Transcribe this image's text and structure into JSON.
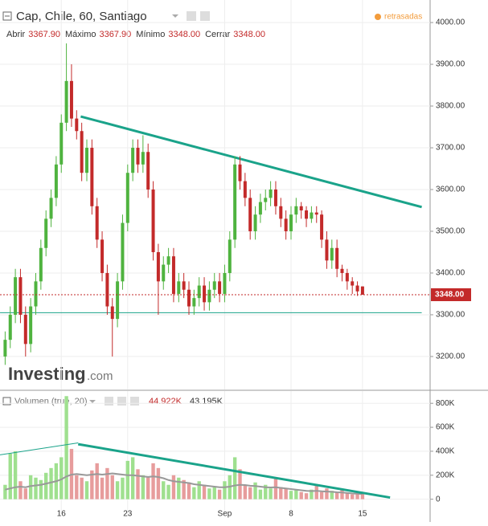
{
  "chart_data": {
    "type": "candlestick",
    "title": "Cap, Chile, 60, Santiago",
    "status": "retrasadas",
    "ohlc_labels": [
      {
        "name": "Abrir",
        "value": "3367.90"
      },
      {
        "name": "Máximo",
        "value": "3367.90"
      },
      {
        "name": "Mínimo",
        "value": "3348.00"
      },
      {
        "name": "Cerrar",
        "value": "3348.00"
      }
    ],
    "logo": "Investing",
    "logo_suffix": ".com",
    "categories": [
      null,
      null,
      null,
      null,
      null,
      null,
      null,
      null,
      null,
      null,
      null,
      "16",
      null,
      null,
      null,
      null,
      null,
      null,
      null,
      null,
      null,
      null,
      null,
      null,
      "23",
      null,
      null,
      null,
      null,
      null,
      null,
      null,
      null,
      null,
      null,
      null,
      null,
      null,
      null,
      null,
      null,
      null,
      null,
      "Sep",
      null,
      null,
      null,
      null,
      null,
      null,
      null,
      null,
      null,
      null,
      null,
      null,
      "8",
      null,
      null,
      null,
      null,
      null,
      null,
      null,
      null,
      null,
      null,
      null,
      null,
      null,
      "15"
    ],
    "open": [
      3200,
      3240,
      3300,
      3390,
      3300,
      3230,
      3320,
      3380,
      3460,
      3530,
      3580,
      3660,
      3760,
      3860,
      3770,
      3740,
      3640,
      3700,
      3560,
      3480,
      3400,
      3320,
      3290,
      3380,
      3520,
      3640,
      3700,
      3660,
      3690,
      3600,
      3450,
      3380,
      3420,
      3440,
      3350,
      3380,
      3360,
      3320,
      3340,
      3370,
      3330,
      3360,
      3380,
      3350,
      3400,
      3480,
      3660,
      3620,
      3580,
      3500,
      3540,
      3570,
      3580,
      3600,
      3560,
      3530,
      3500,
      3540,
      3560,
      3550,
      3530,
      3545,
      3540,
      3480,
      3430,
      3460,
      3410,
      3400,
      3380,
      3370,
      3367.9
    ],
    "high": [
      3260,
      3320,
      3410,
      3410,
      3320,
      3340,
      3400,
      3480,
      3550,
      3600,
      3680,
      3780,
      3950,
      3900,
      3790,
      3760,
      3720,
      3720,
      3580,
      3500,
      3420,
      3340,
      3400,
      3540,
      3660,
      3720,
      3720,
      3730,
      3710,
      3620,
      3470,
      3440,
      3460,
      3460,
      3400,
      3400,
      3380,
      3360,
      3390,
      3390,
      3380,
      3400,
      3400,
      3420,
      3500,
      3680,
      3680,
      3640,
      3600,
      3560,
      3590,
      3600,
      3620,
      3620,
      3580,
      3550,
      3560,
      3580,
      3570,
      3560,
      3560,
      3560,
      3550,
      3500,
      3480,
      3480,
      3420,
      3410,
      3390,
      3380,
      3367.9
    ],
    "low": [
      3180,
      3220,
      3280,
      3280,
      3200,
      3210,
      3300,
      3360,
      3440,
      3510,
      3560,
      3640,
      3740,
      3750,
      3720,
      3620,
      3620,
      3540,
      3460,
      3380,
      3300,
      3200,
      3270,
      3360,
      3500,
      3620,
      3640,
      3640,
      3580,
      3430,
      3300,
      3360,
      3400,
      3330,
      3330,
      3340,
      3300,
      3300,
      3320,
      3310,
      3310,
      3340,
      3330,
      3330,
      3380,
      3460,
      3600,
      3560,
      3480,
      3480,
      3520,
      3550,
      3560,
      3540,
      3510,
      3480,
      3480,
      3520,
      3530,
      3510,
      3520,
      3520,
      3460,
      3410,
      3410,
      3390,
      3380,
      3360,
      3350,
      3345,
      3348
    ],
    "close": [
      3240,
      3300,
      3390,
      3300,
      3230,
      3320,
      3380,
      3460,
      3530,
      3580,
      3660,
      3760,
      3860,
      3770,
      3740,
      3640,
      3700,
      3560,
      3480,
      3400,
      3320,
      3290,
      3380,
      3520,
      3640,
      3700,
      3660,
      3690,
      3600,
      3450,
      3380,
      3420,
      3440,
      3350,
      3380,
      3360,
      3320,
      3340,
      3370,
      3330,
      3360,
      3380,
      3350,
      3400,
      3480,
      3660,
      3620,
      3580,
      3500,
      3540,
      3570,
      3580,
      3600,
      3560,
      3530,
      3500,
      3540,
      3560,
      3550,
      3530,
      3545,
      3540,
      3480,
      3430,
      3460,
      3410,
      3400,
      3380,
      3370,
      3356,
      3348
    ],
    "up_color": "#4fb33f",
    "down_color": "#c32a2a",
    "ylim": [
      3121,
      4054
    ],
    "yticks": [
      {
        "value": 3200,
        "label": "3200.00"
      },
      {
        "value": 3300,
        "label": "3300.00"
      },
      {
        "value": 3400,
        "label": "3400.00"
      },
      {
        "value": 3500,
        "label": "3500.00"
      },
      {
        "value": 3600,
        "label": "3600.00"
      },
      {
        "value": 3700,
        "label": "3700.00"
      },
      {
        "value": 3800,
        "label": "3800.00"
      },
      {
        "value": 3900,
        "label": "3900.00"
      },
      {
        "value": 4000,
        "label": "4000.00"
      }
    ],
    "last_price": {
      "value": 3348,
      "label": "3348.00"
    },
    "trendlines": [
      {
        "x": [
          14.8,
          81.6
        ],
        "values": [
          3775,
          3558
        ],
        "color": "#1aa38a",
        "width": 3
      },
      {
        "x": [
          -1,
          81.6
        ],
        "values": [
          3305,
          3305
        ],
        "color": "#1aa38a",
        "width": 1
      }
    ],
    "volume": {
      "label": "Volumen (true, 20)",
      "value_label": "44.922K",
      "ma_label": "43.195K",
      "values": [
        120000,
        380000,
        400000,
        150000,
        90000,
        200000,
        180000,
        160000,
        220000,
        260000,
        300000,
        350000,
        860000,
        420000,
        200000,
        180000,
        150000,
        240000,
        300000,
        180000,
        260000,
        200000,
        150000,
        180000,
        320000,
        350000,
        250000,
        200000,
        180000,
        300000,
        260000,
        150000,
        120000,
        200000,
        180000,
        160000,
        140000,
        100000,
        150000,
        120000,
        90000,
        100000,
        80000,
        150000,
        200000,
        350000,
        250000,
        120000,
        100000,
        140000,
        80000,
        120000,
        90000,
        180000,
        100000,
        90000,
        70000,
        80000,
        60000,
        50000,
        80000,
        120000,
        60000,
        90000,
        70000,
        60000,
        80000,
        50000,
        40000,
        60000,
        44922
      ],
      "ma": [
        80000,
        90000,
        100000,
        105000,
        100000,
        110000,
        115000,
        120000,
        130000,
        140000,
        150000,
        165000,
        190000,
        205000,
        210000,
        205000,
        200000,
        205000,
        210000,
        205000,
        210000,
        215000,
        210000,
        205000,
        200000,
        200000,
        195000,
        190000,
        185000,
        190000,
        185000,
        175000,
        160000,
        150000,
        145000,
        140000,
        135000,
        125000,
        120000,
        115000,
        110000,
        105000,
        100000,
        100000,
        105000,
        115000,
        120000,
        118000,
        112000,
        110000,
        105000,
        100000,
        98000,
        100000,
        95000,
        90000,
        85000,
        80000,
        75000,
        70000,
        68000,
        70000,
        66000,
        64000,
        62000,
        58000,
        56000,
        52000,
        48000,
        46000,
        43195
      ],
      "up_color": "#9fe08f",
      "down_color": "#e79c9c",
      "ma_color": "#999999",
      "ylim": [
        -123000,
        902000
      ],
      "yticks": [
        0,
        {
          "value": 200000,
          "label": "200K"
        },
        {
          "value": 400000,
          "label": "400K"
        },
        {
          "value": 600000,
          "label": "600K"
        },
        {
          "value": 800000,
          "label": "800K"
        }
      ],
      "trendlines": [
        {
          "x": [
            -1,
            14.3
          ],
          "values": [
            370000,
            470000
          ],
          "color": "#1aa38a",
          "width": 1
        },
        {
          "x": [
            14.3,
            75.4
          ],
          "values": [
            459000,
            14000
          ],
          "color": "#1aa38a",
          "width": 3
        }
      ]
    }
  }
}
